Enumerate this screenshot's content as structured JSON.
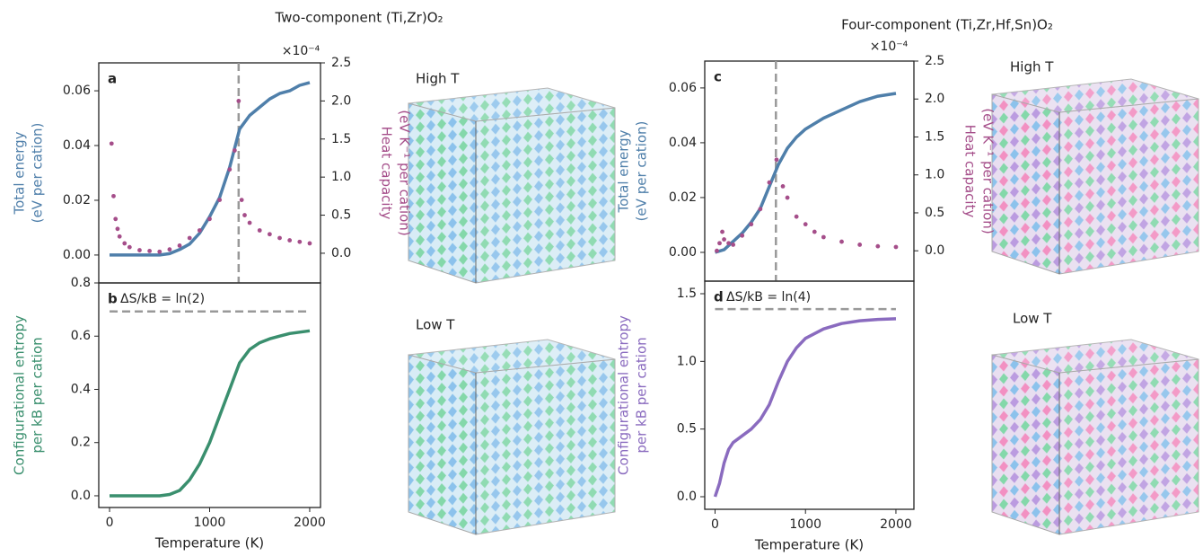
{
  "chart_data": [
    {
      "type": "line",
      "title": "Two-component (Ti,Zr)O₂",
      "panel_label": "a",
      "xlim": [
        -108,
        2108
      ],
      "ylim": [
        -0.0102,
        0.0702
      ],
      "yticks": [
        {
          "value": 0,
          "label": "0.00"
        },
        0.02,
        0.04,
        0.06
      ],
      "y2lim": [
        -0.39,
        2.5
      ],
      "y2ticks": [
        {
          "value": 0,
          "label": "0.0"
        },
        0.5,
        {
          "value": 1,
          "label": "1.0"
        },
        1.5,
        {
          "value": 2,
          "label": "2.0"
        },
        2.5
      ],
      "y2_offset": "×10⁻⁴",
      "ylabel": [
        "Total energy",
        "(eV per cation)"
      ],
      "y2label": [
        "Heat capacity",
        "(eV K⁻¹ per cation)"
      ],
      "vline": 1290,
      "inset_labels": [
        "High T",
        "Low T"
      ],
      "series": [
        {
          "name": "Total energy",
          "type": "line",
          "color": "#4f7faa",
          "x": [
            0,
            100,
            200,
            300,
            400,
            500,
            600,
            700,
            800,
            900,
            1000,
            1100,
            1200,
            1300,
            1400,
            1500,
            1600,
            1700,
            1800,
            1900,
            2000
          ],
          "values": [
            0,
            0,
            0,
            0,
            0,
            0,
            0.0005,
            0.002,
            0.004,
            0.008,
            0.014,
            0.021,
            0.032,
            0.046,
            0.051,
            0.054,
            0.057,
            0.059,
            0.06,
            0.062,
            0.063
          ]
        },
        {
          "name": "Heat capacity",
          "type": "scatter",
          "axis": "y2",
          "color": "#a54e8a",
          "x": [
            20,
            40,
            60,
            80,
            100,
            150,
            200,
            300,
            400,
            500,
            600,
            700,
            800,
            900,
            1000,
            1100,
            1200,
            1250,
            1290,
            1320,
            1350,
            1400,
            1500,
            1600,
            1700,
            1800,
            1900,
            2000
          ],
          "values": [
            1.44,
            0.75,
            0.45,
            0.32,
            0.22,
            0.13,
            0.08,
            0.04,
            0.03,
            0.02,
            0.05,
            0.1,
            0.2,
            0.3,
            0.45,
            0.7,
            1.1,
            1.35,
            2.0,
            0.7,
            0.5,
            0.4,
            0.3,
            0.25,
            0.2,
            0.17,
            0.15,
            0.13
          ]
        }
      ]
    },
    {
      "type": "line",
      "panel_label": "b",
      "annotation": "ΔS/kB = ln(2)",
      "xlim": [
        -108,
        2108
      ],
      "ylim": [
        -0.044,
        0.8
      ],
      "yticks": [
        {
          "value": 0,
          "label": "0.0"
        },
        0.2,
        0.4,
        0.6,
        0.8
      ],
      "xticks": [
        0,
        1000,
        2000
      ],
      "xlabel": "Temperature (K)",
      "ylabel": [
        "Configurational entropy",
        "per kB per cation"
      ],
      "hline": 0.693,
      "series": [
        {
          "name": "Configurational entropy",
          "type": "line",
          "color": "#3a8f6e",
          "x": [
            0,
            100,
            200,
            300,
            400,
            500,
            600,
            700,
            800,
            900,
            1000,
            1100,
            1200,
            1300,
            1400,
            1500,
            1600,
            1700,
            1800,
            1900,
            2000
          ],
          "values": [
            0,
            0,
            0,
            0,
            0,
            0,
            0.005,
            0.02,
            0.06,
            0.12,
            0.2,
            0.3,
            0.4,
            0.5,
            0.55,
            0.575,
            0.59,
            0.6,
            0.61,
            0.615,
            0.62
          ]
        }
      ]
    },
    {
      "type": "line",
      "title": "Four-component (Ti,Zr,Hf,Sn)O₂",
      "panel_label": "c",
      "xlim": [
        -114,
        2199
      ],
      "ylim": [
        -0.0105,
        0.0698
      ],
      "yticks": [
        {
          "value": 0,
          "label": "0.00"
        },
        0.02,
        0.04,
        0.06
      ],
      "y2lim": [
        -0.4,
        2.5
      ],
      "y2ticks": [
        {
          "value": 0,
          "label": "0.0"
        },
        0.5,
        {
          "value": 1,
          "label": "1.0"
        },
        1.5,
        {
          "value": 2,
          "label": "2.0"
        },
        2.5
      ],
      "y2_offset": "×10⁻⁴",
      "ylabel": [
        "Total energy",
        "(eV per cation)"
      ],
      "y2label": [
        "Heat capacity",
        "(eV K⁻¹ per cation)"
      ],
      "vline": 673,
      "inset_labels": [
        "High T",
        "Low T"
      ],
      "series": [
        {
          "name": "Total energy",
          "type": "line",
          "color": "#4f7faa",
          "x": [
            0,
            100,
            200,
            300,
            400,
            500,
            600,
            700,
            800,
            900,
            1000,
            1200,
            1400,
            1600,
            1800,
            2000
          ],
          "values": [
            0,
            0.001,
            0.004,
            0.007,
            0.011,
            0.016,
            0.024,
            0.032,
            0.038,
            0.042,
            0.045,
            0.049,
            0.052,
            0.055,
            0.057,
            0.058
          ]
        },
        {
          "name": "Heat capacity",
          "type": "scatter",
          "axis": "y2",
          "color": "#a54e8a",
          "x": [
            20,
            50,
            80,
            100,
            150,
            200,
            300,
            400,
            500,
            600,
            680,
            750,
            800,
            900,
            1000,
            1100,
            1200,
            1400,
            1600,
            1800,
            2000
          ],
          "values": [
            0,
            0.1,
            0.25,
            0.15,
            0.1,
            0.08,
            0.2,
            0.35,
            0.55,
            0.9,
            1.2,
            0.85,
            0.7,
            0.45,
            0.35,
            0.25,
            0.18,
            0.12,
            0.08,
            0.06,
            0.05
          ]
        }
      ]
    },
    {
      "type": "line",
      "panel_label": "d",
      "annotation": "ΔS/kB = ln(4)",
      "xlim": [
        -114,
        2199
      ],
      "ylim": [
        -0.093,
        1.593
      ],
      "yticks": [
        {
          "value": 0,
          "label": "0.0"
        },
        0.5,
        {
          "value": 1,
          "label": "1.0"
        },
        1.5
      ],
      "xticks": [
        0,
        1000,
        2000
      ],
      "xlabel": "Temperature (K)",
      "ylabel": [
        "Configurational entropy",
        "per kB per cation"
      ],
      "hline": 1.386,
      "series": [
        {
          "name": "Configurational entropy",
          "type": "line",
          "color": "#8a6bbf",
          "x": [
            0,
            50,
            100,
            150,
            200,
            300,
            400,
            500,
            600,
            700,
            800,
            900,
            1000,
            1200,
            1400,
            1600,
            1800,
            2000
          ],
          "values": [
            0,
            0.1,
            0.25,
            0.35,
            0.4,
            0.45,
            0.5,
            0.57,
            0.68,
            0.85,
            1.0,
            1.1,
            1.17,
            1.24,
            1.28,
            1.3,
            1.31,
            1.315
          ]
        }
      ]
    }
  ]
}
